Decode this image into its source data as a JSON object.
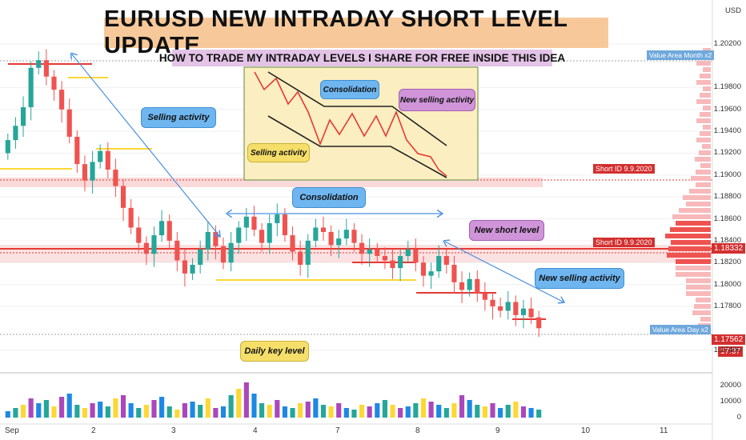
{
  "header": {
    "title": "EURUSD NEW INTRADAY SHORT LEVEL UPDATE",
    "subtitle": "HOW TO TRADE MY INTRADAY LEVELS I SHARE FOR FREE INSIDE THIS IDEA",
    "currency": "USD"
  },
  "callouts": {
    "selling_activity": "Selling activity",
    "consolidation": "Consolidation",
    "new_short_level": "New short level",
    "new_selling_activity": "New selling activity",
    "daily_key_level": "Daily key level",
    "inset_consolidation": "Consolidation",
    "inset_new_selling": "New selling activity",
    "inset_selling": "Selling activity"
  },
  "price_tags": {
    "value_area_month": "Value Area Month x2",
    "value_area_day": "Value Area Day x2",
    "short_id_1": "Short ID   9.9.2020",
    "short_id_2": "Short ID   9.9.2020",
    "current_price": "1.18332",
    "last_price": "1.17562",
    "time": "17:37"
  },
  "colors": {
    "up": "#26a69a",
    "down": "#ef5350",
    "short_line": "#e53935",
    "key_level": "#fdd835",
    "arrow": "#4a90e2",
    "zone": "#f8c9c9"
  },
  "chart_data": {
    "type": "candlestick",
    "symbol": "EURUSD",
    "ylim": [
      1.172,
      1.206
    ],
    "yticks": [
      1.202,
      1.198,
      1.196,
      1.194,
      1.192,
      1.19,
      1.188,
      1.186,
      1.184,
      1.182,
      1.18,
      1.178,
      1.174
    ],
    "ytick_labels": [
      "1.20200",
      "1.19800",
      "1.19600",
      "1.19400",
      "1.19200",
      "1.19000",
      "1.18800",
      "1.18600",
      "1.18400",
      "1.18200",
      "1.18000",
      "1.17800",
      "1.17400"
    ],
    "xticks": [
      "Sep",
      "2",
      "3",
      "4",
      "7",
      "8",
      "9",
      "10",
      "11"
    ],
    "levels": {
      "short_level": 1.18332,
      "short_id_upper": 1.1892,
      "daily_key_level": 1.1808,
      "last_price": 1.17562
    },
    "closes": [
      1.1932,
      1.1945,
      1.1962,
      1.1998,
      1.2005,
      1.199,
      1.1978,
      1.196,
      1.1935,
      1.191,
      1.1895,
      1.1912,
      1.1922,
      1.1905,
      1.189,
      1.187,
      1.1852,
      1.1838,
      1.1828,
      1.1845,
      1.1858,
      1.184,
      1.1822,
      1.181,
      1.1818,
      1.1832,
      1.1848,
      1.1835,
      1.182,
      1.1838,
      1.1852,
      1.1862,
      1.185,
      1.1838,
      1.1856,
      1.1864,
      1.1845,
      1.183,
      1.1818,
      1.184,
      1.1852,
      1.1848,
      1.1836,
      1.1842,
      1.185,
      1.1838,
      1.1828,
      1.1832,
      1.1826,
      1.1822,
      1.1815,
      1.1826,
      1.1832,
      1.182,
      1.1808,
      1.1812,
      1.1826,
      1.1818,
      1.1802,
      1.1795,
      1.1805,
      1.1792,
      1.1786,
      1.178,
      1.1776,
      1.1784,
      1.1772,
      1.1778,
      1.177,
      1.176
    ],
    "volume": {
      "yticks": [
        20000,
        10000,
        0
      ],
      "ytick_labels": [
        "20000",
        "10000",
        "0"
      ],
      "values": [
        4000,
        6000,
        8000,
        12000,
        9000,
        11000,
        7000,
        13000,
        15000,
        8000,
        6000,
        9000,
        10000,
        7000,
        12000,
        14000,
        9000,
        6000,
        8000,
        11000,
        13000,
        7000,
        5000,
        9000,
        10000,
        8000,
        12000,
        6000,
        7000,
        14000,
        18000,
        22000,
        15000,
        9000,
        8000,
        11000,
        7000,
        6000,
        9000,
        10000,
        12000,
        8000,
        7000,
        9000,
        6000,
        5000,
        8000,
        7000,
        9000,
        11000,
        8000,
        6000,
        7000,
        9000,
        12000,
        10000,
        8000,
        6000,
        9000,
        14000,
        11000,
        8000,
        7000,
        9000,
        6000,
        8000,
        10000,
        7000,
        6000,
        5000
      ]
    }
  }
}
